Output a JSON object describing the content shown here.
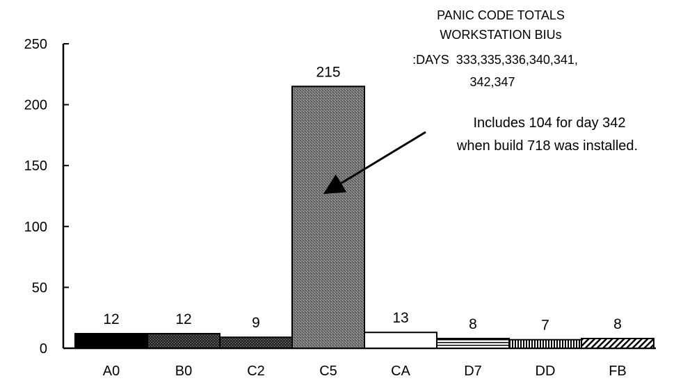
{
  "chart_data": {
    "type": "bar",
    "title": "PANIC CODE TOTALS",
    "subtitle": "WORKSTATION BIUs",
    "days_label": ":DAYS  333,335,336,340,341,",
    "days_label_2": "342,347",
    "xlabel": "",
    "ylabel": "",
    "ylim": [
      0,
      250
    ],
    "yticks": [
      "0",
      "50",
      "100",
      "150",
      "200",
      "250"
    ],
    "categories": [
      "A0",
      "B0",
      "C2",
      "C5",
      "CA",
      "D7",
      "DD",
      "FB"
    ],
    "values": [
      12,
      12,
      9,
      215,
      13,
      8,
      7,
      8
    ],
    "data_labels": [
      "12",
      "12",
      "9",
      "215",
      "13",
      "8",
      "7",
      "8"
    ],
    "bar_fills": [
      "solid-black",
      "dark-stipple",
      "dark-stipple",
      "gray-stipple",
      "white",
      "horizontal-lines",
      "vertical-lines",
      "diagonal-hatch"
    ],
    "annotation": {
      "line1": "Includes 104 for day 342",
      "line2": "when build 718 was installed.",
      "points_to": "C5"
    },
    "grid": false,
    "legend": "none"
  }
}
